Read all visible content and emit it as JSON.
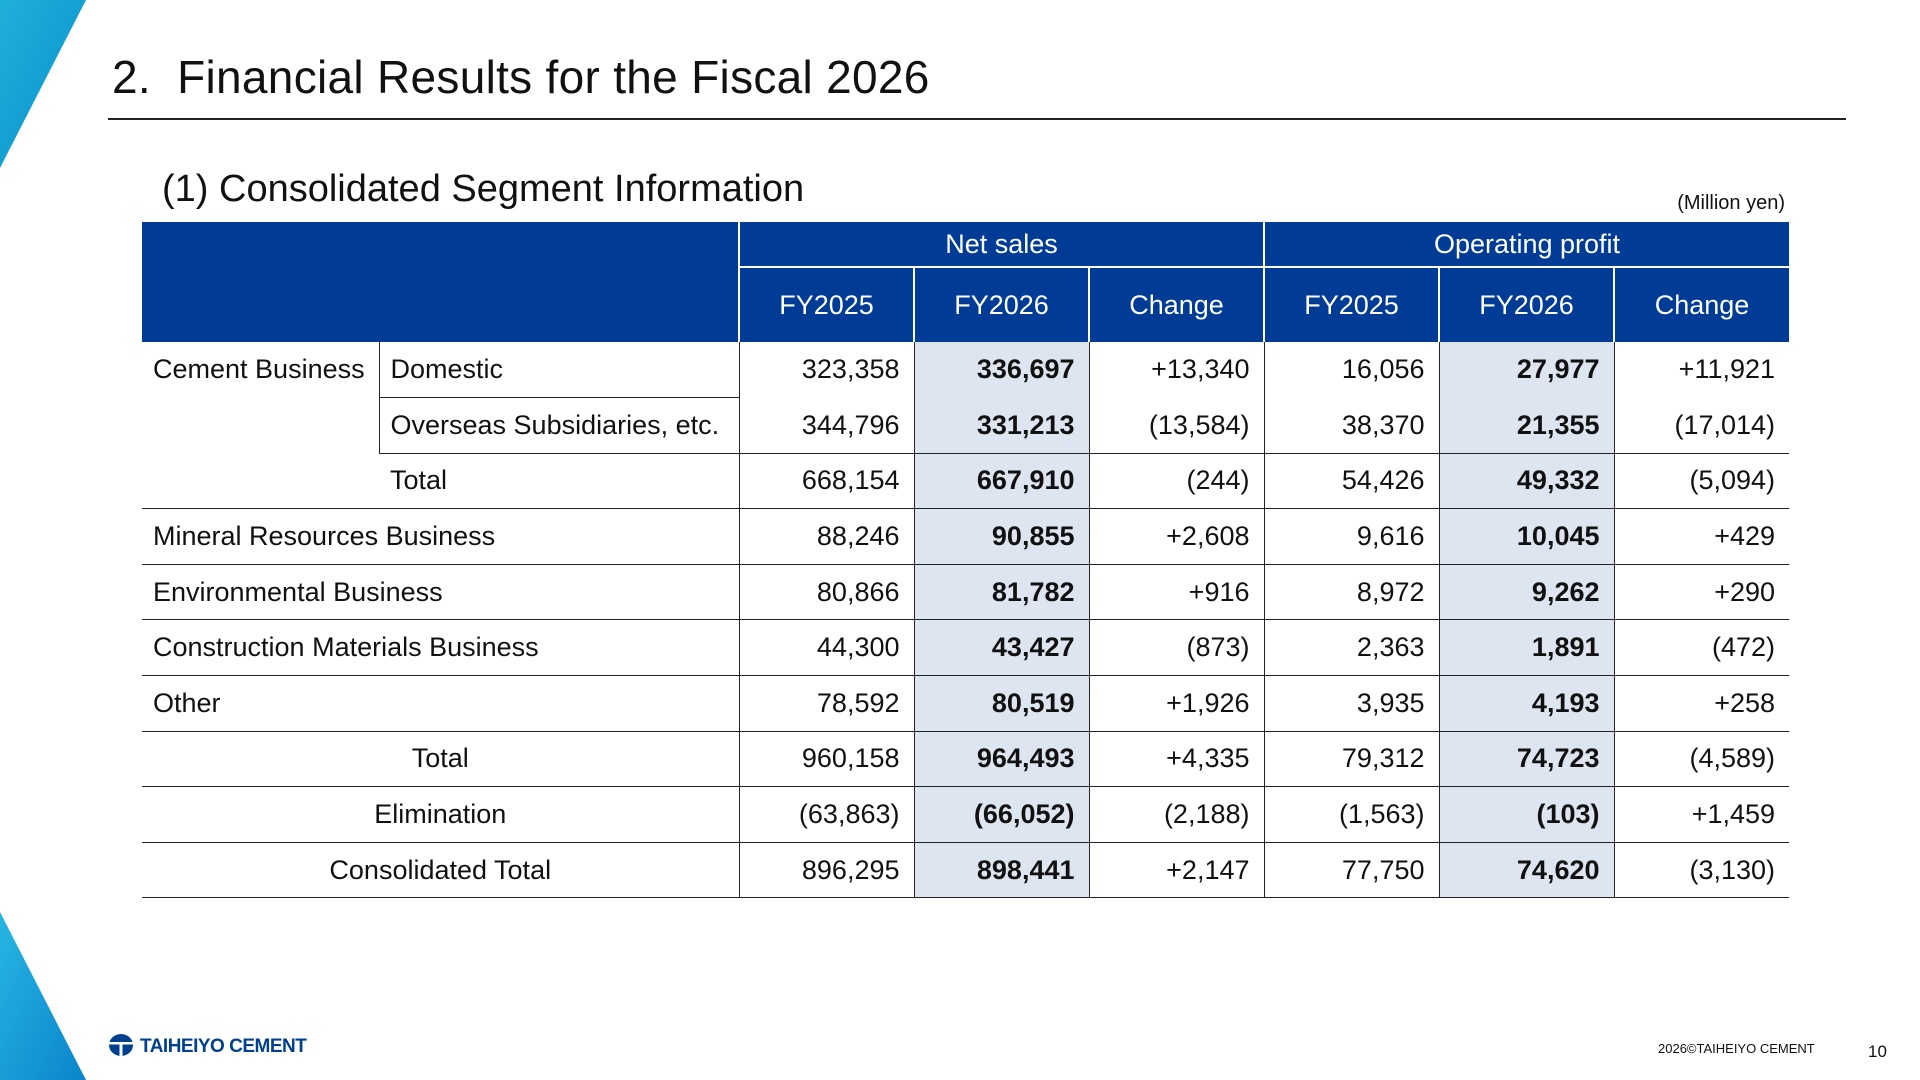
{
  "header": {
    "title": "2.  Financial Results for the Fiscal 2026",
    "subtitle": "(1) Consolidated Segment Information",
    "unit": "(Million yen)"
  },
  "table": {
    "groups": [
      "Net sales",
      "Operating profit"
    ],
    "columns": [
      "FY2025",
      "FY2026",
      "Change",
      "FY2025",
      "FY2026",
      "Change"
    ],
    "rows": [
      {
        "label": "Cement Business",
        "sublabel": "Domestic",
        "values": [
          "323,358",
          "336,697",
          "+13,340",
          "16,056",
          "27,977",
          "+11,921"
        ]
      },
      {
        "label": "",
        "sublabel": "Overseas Subsidiaries, etc.",
        "values": [
          "344,796",
          "331,213",
          "(13,584)",
          "38,370",
          "21,355",
          "(17,014)"
        ]
      },
      {
        "label": "",
        "sublabel": "Total",
        "values": [
          "668,154",
          "667,910",
          "(244)",
          "54,426",
          "49,332",
          "(5,094)"
        ]
      },
      {
        "label": "Mineral Resources Business",
        "values": [
          "88,246",
          "90,855",
          "+2,608",
          "9,616",
          "10,045",
          "+429"
        ]
      },
      {
        "label": "Environmental Business",
        "values": [
          "80,866",
          "81,782",
          "+916",
          "8,972",
          "9,262",
          "+290"
        ]
      },
      {
        "label": "Construction Materials Business",
        "values": [
          "44,300",
          "43,427",
          "(873)",
          "2,363",
          "1,891",
          "(472)"
        ]
      },
      {
        "label": "Other",
        "values": [
          "78,592",
          "80,519",
          "+1,926",
          "3,935",
          "4,193",
          "+258"
        ]
      },
      {
        "label": "Total",
        "values": [
          "960,158",
          "964,493",
          "+4,335",
          "79,312",
          "74,723",
          "(4,589)"
        ]
      },
      {
        "label": "Elimination",
        "values": [
          "(63,863)",
          "(66,052)",
          "(2,188)",
          "(1,563)",
          "(103)",
          "+1,459"
        ]
      },
      {
        "label": "Consolidated Total",
        "values": [
          "896,295",
          "898,441",
          "+2,147",
          "77,750",
          "74,620",
          "(3,130)"
        ]
      }
    ]
  },
  "footer": {
    "logo_text": "TAIHEIYO CEMENT",
    "copyright": "2026©TAIHEIYO CEMENT",
    "page_number": "10"
  },
  "colors": {
    "header_bg": "#003c96",
    "highlight_bg": "#dde6f0",
    "accent": "#1aa3d6"
  }
}
